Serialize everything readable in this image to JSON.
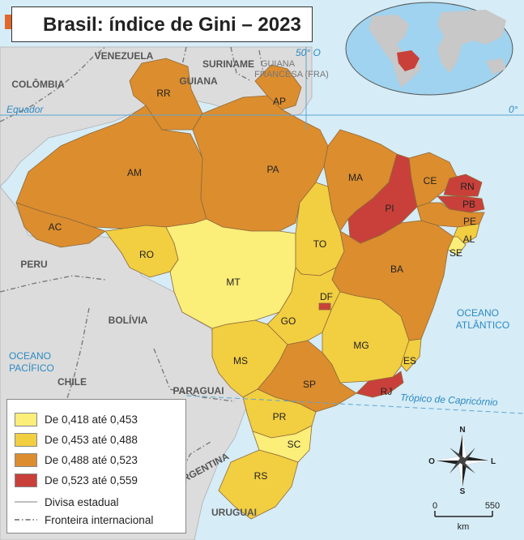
{
  "title": "Brasil: índice de Gini – 2023",
  "colors": {
    "ocean": "#d6ecf7",
    "land_other": "#dcdcdc",
    "class1": "#fbee79",
    "class2": "#f2ce41",
    "class3": "#dc8d2e",
    "class4": "#c9403a",
    "accent": "#e0682a"
  },
  "map_labels": {
    "countries": [
      "VENEZUELA",
      "SURINAME",
      "GUIANA",
      "COLÔMBIA",
      "PERU",
      "BOLÍVIA",
      "CHILE",
      "PARAGUAI",
      "ARGENTINA",
      "URUGUAI"
    ],
    "guiana_francesa": [
      "GUIANA",
      "FRANCESA (FRA)"
    ],
    "water": [
      "OCEANO",
      "ATLÂNTICO",
      "OCEANO",
      "PACÍFICO"
    ],
    "lines": [
      "Equador",
      "0°",
      "50° O",
      "Trópico de Capricórnio"
    ],
    "compass": [
      "N",
      "S",
      "O",
      "L"
    ],
    "scale": [
      "0",
      "550",
      "km"
    ]
  },
  "states": [
    {
      "code": "RR",
      "class": 3
    },
    {
      "code": "AP",
      "class": 3
    },
    {
      "code": "AM",
      "class": 3
    },
    {
      "code": "PA",
      "class": 3
    },
    {
      "code": "AC",
      "class": 3
    },
    {
      "code": "RO",
      "class": 2
    },
    {
      "code": "MT",
      "class": 1
    },
    {
      "code": "TO",
      "class": 2
    },
    {
      "code": "MA",
      "class": 3
    },
    {
      "code": "PI",
      "class": 4
    },
    {
      "code": "CE",
      "class": 3
    },
    {
      "code": "RN",
      "class": 4
    },
    {
      "code": "PB",
      "class": 4
    },
    {
      "code": "PE",
      "class": 3
    },
    {
      "code": "AL",
      "class": 2
    },
    {
      "code": "SE",
      "class": 1
    },
    {
      "code": "BA",
      "class": 3
    },
    {
      "code": "DF",
      "class": 4
    },
    {
      "code": "GO",
      "class": 2
    },
    {
      "code": "MG",
      "class": 2
    },
    {
      "code": "ES",
      "class": 2
    },
    {
      "code": "MS",
      "class": 2
    },
    {
      "code": "SP",
      "class": 3
    },
    {
      "code": "RJ",
      "class": 4
    },
    {
      "code": "PR",
      "class": 2
    },
    {
      "code": "SC",
      "class": 1
    },
    {
      "code": "RS",
      "class": 2
    }
  ],
  "legend": {
    "classes": [
      {
        "label": "De 0,418 até 0,453",
        "color": "#fbee79"
      },
      {
        "label": "De 0,453 até 0,488",
        "color": "#f2ce41"
      },
      {
        "label": "De 0,488 até 0,523",
        "color": "#dc8d2e"
      },
      {
        "label": "De 0,523 até 0,559",
        "color": "#c9403a"
      }
    ],
    "divisa": "Divisa estadual",
    "fronteira": "Fronteira internacional"
  }
}
